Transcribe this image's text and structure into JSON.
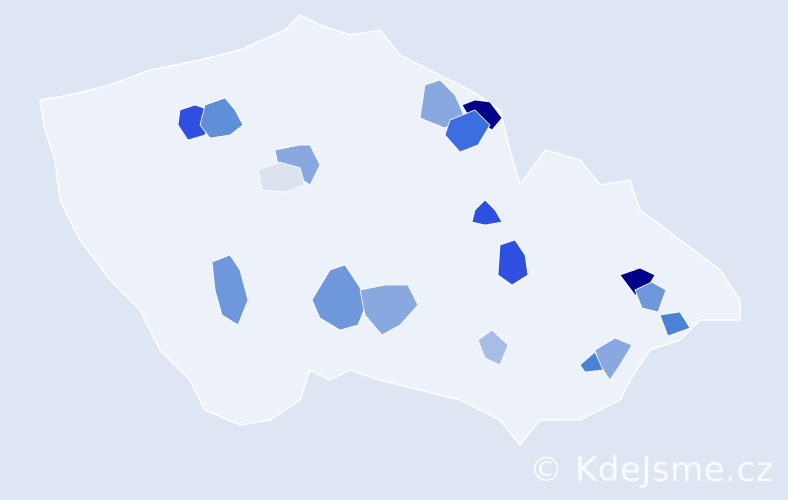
{
  "map": {
    "background": "#dde6f2",
    "country_fill": "#edf1f9",
    "border_color": "#ffffff",
    "highlighted_regions": [
      {
        "color": "#00008b"
      },
      {
        "color": "#2f4fe0"
      },
      {
        "color": "#5f8fd8"
      },
      {
        "color": "#8aa8e0"
      },
      {
        "color": "#dde3ee"
      },
      {
        "color": "#8aa8e0"
      },
      {
        "color": "#3d6ee0"
      },
      {
        "color": "#2f4fe0"
      },
      {
        "color": "#2f4fe0"
      },
      {
        "color": "#00008b"
      },
      {
        "color": "#6f97dc"
      },
      {
        "color": "#4a82d6"
      },
      {
        "color": "#8aa8e0"
      },
      {
        "color": "#4a82d6"
      },
      {
        "color": "#a8bde6"
      },
      {
        "color": "#6f97dc"
      },
      {
        "color": "#6f97dc"
      },
      {
        "color": "#8aa8e0"
      }
    ]
  },
  "watermark": "© KdeJsme.cz"
}
